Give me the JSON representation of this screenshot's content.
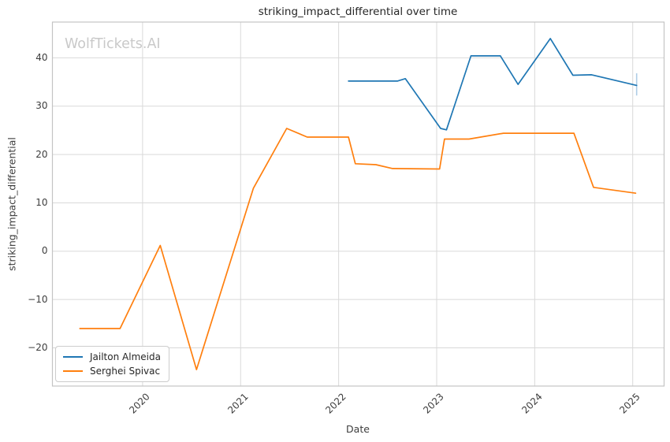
{
  "watermark": {
    "text": "WolfTickets.AI",
    "color": "#c9c9c9"
  },
  "colors": {
    "series_blue": "#1f77b4",
    "series_orange": "#ff7f0e",
    "error_bar": "#aecde6",
    "grid": "#d9d9d9",
    "spine": "#c4c4c4",
    "tick_text": "#3d3d3d",
    "title_text": "#262626",
    "background": "#ffffff"
  },
  "chart_data": {
    "type": "line",
    "title": "striking_impact_differential over time",
    "xlabel": "Date",
    "ylabel": "striking_impact_differential",
    "xlim": [
      2019.08,
      2025.32
    ],
    "ylim": [
      -27.9,
      47.4
    ],
    "xticks": [
      2020,
      2021,
      2022,
      2023,
      2024,
      2025
    ],
    "yticks": [
      -20,
      -10,
      0,
      10,
      20,
      30,
      40
    ],
    "grid": true,
    "legend_position": "lower-left",
    "series": [
      {
        "name": "Jailton Almeida",
        "color": "#1f77b4",
        "x": [
          2022.1,
          2022.6,
          2022.68,
          2023.04,
          2023.1,
          2023.35,
          2023.65,
          2023.83,
          2024.16,
          2024.39,
          2024.58,
          2025.04
        ],
        "y": [
          35.2,
          35.2,
          35.7,
          25.4,
          25.1,
          40.4,
          40.4,
          34.5,
          44.0,
          36.4,
          36.5,
          34.3
        ]
      },
      {
        "name": "Serghei Spivac",
        "color": "#ff7f0e",
        "x": [
          2019.36,
          2019.77,
          2020.18,
          2020.55,
          2021.13,
          2021.47,
          2021.68,
          2022.1,
          2022.17,
          2022.38,
          2022.55,
          2023.03,
          2023.08,
          2023.33,
          2023.68,
          2024.4,
          2024.6,
          2025.03
        ],
        "y": [
          -16.0,
          -16.0,
          1.2,
          -24.5,
          13.0,
          25.4,
          23.6,
          23.6,
          18.1,
          17.9,
          17.1,
          17.0,
          23.2,
          23.2,
          24.4,
          24.4,
          13.2,
          12.0
        ]
      }
    ],
    "error_bar": {
      "series": "Jailton Almeida",
      "x": 2025.04,
      "y_low": 32.2,
      "y_high": 36.8,
      "color": "#aecde6"
    }
  }
}
